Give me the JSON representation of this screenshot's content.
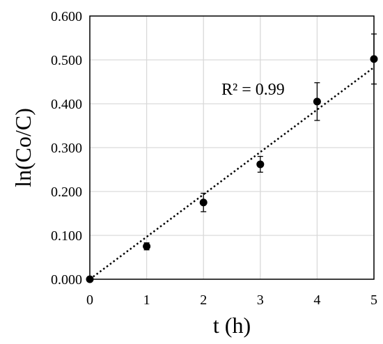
{
  "chart_data": {
    "type": "scatter",
    "xlabel": "t (h)",
    "ylabel": "ln(Co/C)",
    "xlim": [
      0,
      5
    ],
    "ylim": [
      0,
      0.6
    ],
    "x_ticks": [
      "0",
      "1",
      "2",
      "3",
      "4",
      "5"
    ],
    "y_ticks": [
      "0.000",
      "0.100",
      "0.200",
      "0.300",
      "0.400",
      "0.500",
      "0.600"
    ],
    "grid": true,
    "series": [
      {
        "points": [
          {
            "x": 0,
            "y": 0.0,
            "err": 0.0
          },
          {
            "x": 1,
            "y": 0.075,
            "err": 0.008
          },
          {
            "x": 2,
            "y": 0.175,
            "err": 0.021
          },
          {
            "x": 3,
            "y": 0.262,
            "err": 0.018
          },
          {
            "x": 4,
            "y": 0.405,
            "err": 0.043
          },
          {
            "x": 5,
            "y": 0.502,
            "err": 0.057
          }
        ]
      }
    ],
    "trendline": {
      "style": "dotted",
      "x": [
        0,
        5
      ],
      "y": [
        0.0,
        0.483
      ]
    },
    "annotation": "R² = 0.99",
    "colors": {
      "marker": "#000000",
      "grid": "#d9d9d9"
    }
  }
}
